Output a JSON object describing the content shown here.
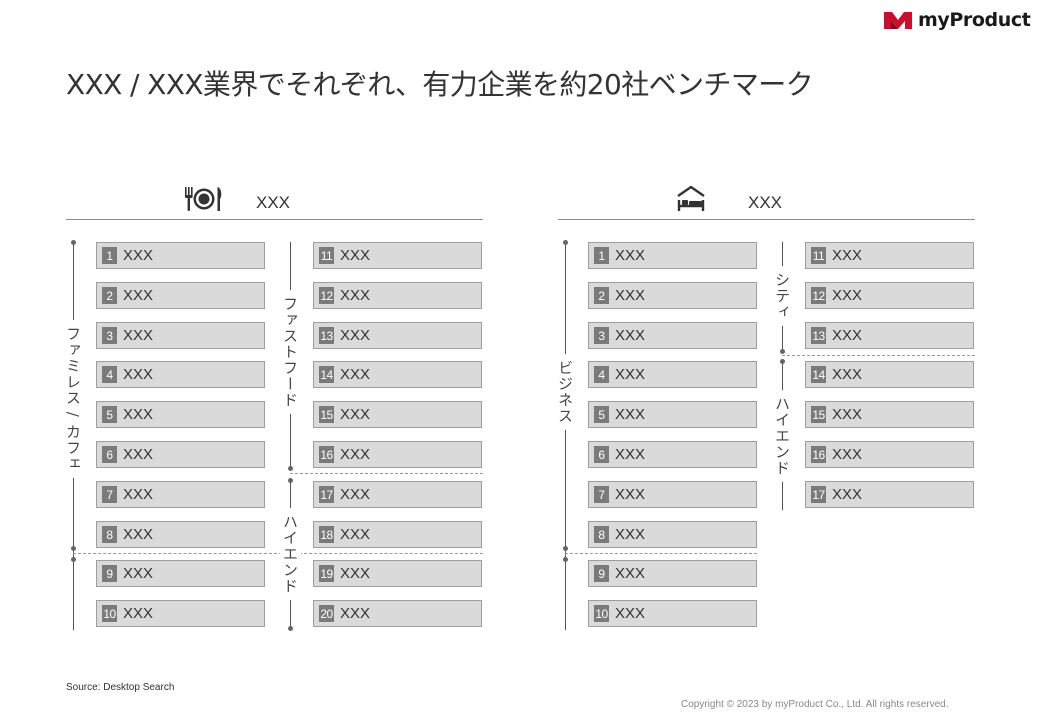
{
  "brand": {
    "name": "myProduct",
    "icon": "myproduct-logo-icon",
    "color": "#c8102e"
  },
  "title": "XXX / XXX業界でそれぞれ、有力企業を約20社ベンチマーク",
  "sections": [
    {
      "title": "XXX",
      "icon": "restaurant-icon",
      "columns": [
        {
          "categories": [
            {
              "label": "ファミレス / カフェ"
            }
          ],
          "items": [
            {
              "num": "1",
              "name": "XXX"
            },
            {
              "num": "2",
              "name": "XXX"
            },
            {
              "num": "3",
              "name": "XXX"
            },
            {
              "num": "4",
              "name": "XXX"
            },
            {
              "num": "5",
              "name": "XXX"
            },
            {
              "num": "6",
              "name": "XXX"
            },
            {
              "num": "7",
              "name": "XXX"
            },
            {
              "num": "8",
              "name": "XXX"
            },
            {
              "num": "9",
              "name": "XXX"
            },
            {
              "num": "10",
              "name": "XXX"
            }
          ]
        },
        {
          "categories": [
            {
              "label": "ファストフード"
            },
            {
              "label": "ハイエンド"
            }
          ],
          "items": [
            {
              "num": "11",
              "name": "XXX"
            },
            {
              "num": "12",
              "name": "XXX"
            },
            {
              "num": "13",
              "name": "XXX"
            },
            {
              "num": "14",
              "name": "XXX"
            },
            {
              "num": "15",
              "name": "XXX"
            },
            {
              "num": "16",
              "name": "XXX"
            },
            {
              "num": "17",
              "name": "XXX"
            },
            {
              "num": "18",
              "name": "XXX"
            },
            {
              "num": "19",
              "name": "XXX"
            },
            {
              "num": "20",
              "name": "XXX"
            }
          ]
        }
      ]
    },
    {
      "title": "XXX",
      "icon": "hotel-bed-icon",
      "columns": [
        {
          "categories": [
            {
              "label": "ビジネス"
            }
          ],
          "items": [
            {
              "num": "1",
              "name": "XXX"
            },
            {
              "num": "2",
              "name": "XXX"
            },
            {
              "num": "3",
              "name": "XXX"
            },
            {
              "num": "4",
              "name": "XXX"
            },
            {
              "num": "5",
              "name": "XXX"
            },
            {
              "num": "6",
              "name": "XXX"
            },
            {
              "num": "7",
              "name": "XXX"
            },
            {
              "num": "8",
              "name": "XXX"
            },
            {
              "num": "9",
              "name": "XXX"
            },
            {
              "num": "10",
              "name": "XXX"
            }
          ]
        },
        {
          "categories": [
            {
              "label": "シティ"
            },
            {
              "label": "ハイエンド"
            }
          ],
          "items": [
            {
              "num": "11",
              "name": "XXX"
            },
            {
              "num": "12",
              "name": "XXX"
            },
            {
              "num": "13",
              "name": "XXX"
            },
            {
              "num": "14",
              "name": "XXX"
            },
            {
              "num": "15",
              "name": "XXX"
            },
            {
              "num": "16",
              "name": "XXX"
            },
            {
              "num": "17",
              "name": "XXX"
            }
          ]
        }
      ]
    }
  ],
  "source": "Source: Desktop Search",
  "copyright": "Copyright © 2023 by myProduct Co., Ltd.  All rights reserved."
}
